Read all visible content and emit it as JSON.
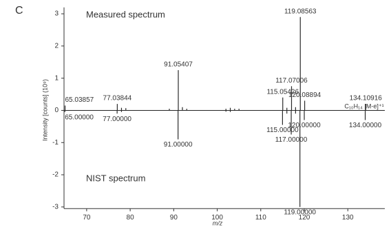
{
  "chart_data": {
    "type": "mirror-spectrum",
    "panel_label": "C",
    "ylabel": "Intensity [counts] (10⁹)",
    "xlabel": "m/z",
    "xlim": [
      64.8,
      138.5
    ],
    "xticks": [
      70,
      80,
      90,
      100,
      110,
      120,
      130
    ],
    "ylim": [
      -3.05,
      3.2
    ],
    "yticks": [
      -3,
      -2,
      -1,
      0,
      1,
      2,
      3
    ],
    "series": [
      {
        "name": "Measured spectrum",
        "color": "#2a2a2a",
        "name_color": "#3a8aa3",
        "x": [
          65.03857,
          77.03844,
          78.0,
          79.0,
          89.0,
          91.05407,
          92.0,
          93.0,
          102.0,
          103.0,
          104.0,
          105.0,
          115.05426,
          116.0,
          117.07006,
          118.0,
          119.08563,
          120.08894,
          134.10916
        ],
        "values": [
          0.15,
          0.2,
          0.08,
          0.07,
          0.05,
          1.25,
          0.1,
          0.05,
          0.05,
          0.08,
          0.05,
          0.05,
          0.4,
          0.08,
          0.75,
          0.1,
          2.9,
          0.3,
          0.2
        ],
        "labels": [
          "65.03857",
          "77.03844",
          null,
          null,
          null,
          "91.05407",
          null,
          null,
          null,
          null,
          null,
          null,
          "115.05426",
          null,
          "117.07006",
          null,
          "119.08563",
          "120.08894",
          "134.10916"
        ],
        "label_colors": [
          "#3a8aa3",
          "#3a8aa3",
          null,
          null,
          null,
          "#3a8aa3",
          null,
          null,
          null,
          null,
          null,
          null,
          "#3a8aa3",
          null,
          "#3a8aa3",
          null,
          "#3a8aa3",
          "#3a8aa3",
          "#e5533d"
        ]
      },
      {
        "name": "NIST spectrum",
        "color": "#2a2a2a",
        "name_color": "#777777",
        "x": [
          65.0,
          77.0,
          78.0,
          91.0,
          102.0,
          103.0,
          115.0,
          116.0,
          117.0,
          118.0,
          119.0,
          120.0,
          134.0
        ],
        "values": [
          -0.05,
          -0.1,
          -0.05,
          -0.9,
          -0.04,
          -0.05,
          -0.45,
          -0.1,
          -0.75,
          -0.1,
          -3.0,
          -0.3,
          -0.3
        ],
        "labels": [
          "65.00000",
          "77.00000",
          null,
          "91.00000",
          null,
          null,
          "115.00000",
          null,
          "117.00000",
          null,
          "119.00000",
          "120.00000",
          "134.00000"
        ],
        "label_colors": [
          "#777777",
          "#777777",
          null,
          "#777777",
          null,
          null,
          "#777777",
          null,
          "#777777",
          null,
          "#777777",
          "#777777",
          "#777777"
        ]
      }
    ],
    "annotation": {
      "text": "C₁₀H₁₄ [M-e]⁺¹",
      "x": 134.10916,
      "color": "#e5533d"
    }
  }
}
